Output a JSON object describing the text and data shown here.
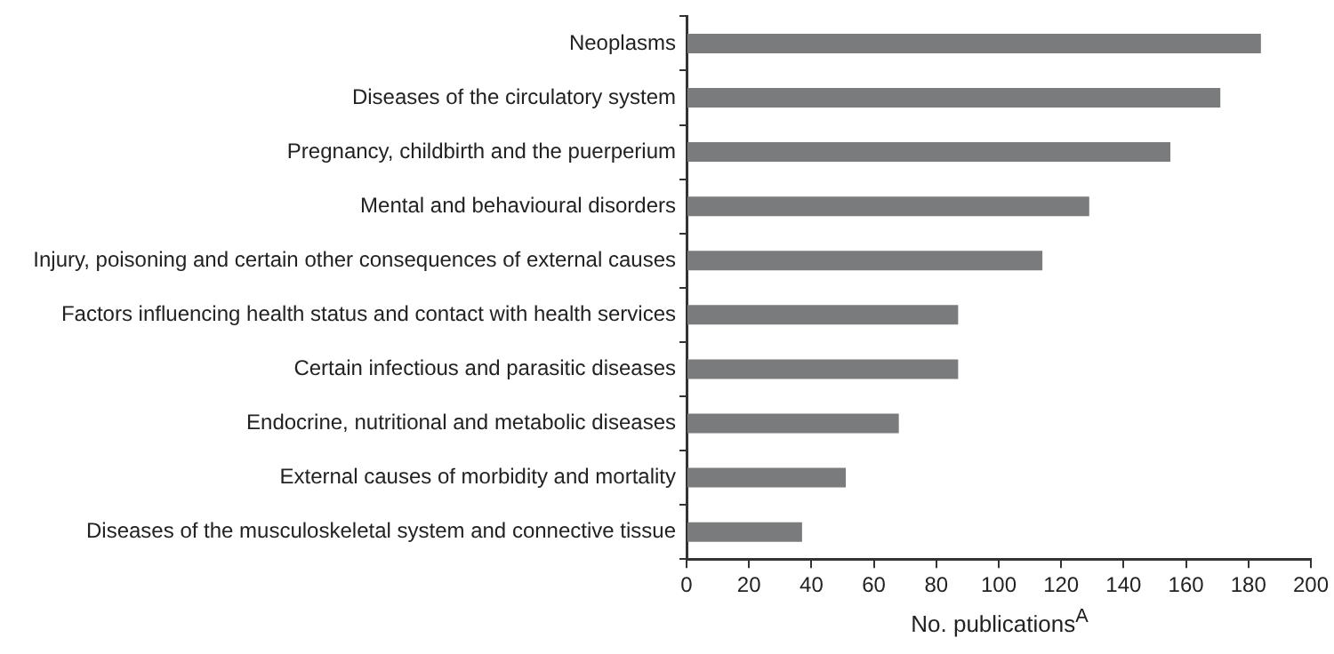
{
  "chart_data": {
    "type": "bar",
    "orientation": "horizontal",
    "categories": [
      "Neoplasms",
      "Diseases of the circulatory system",
      "Pregnancy, childbirth and the puerperium",
      "Mental and behavioural disorders",
      "Injury, poisoning and certain other consequences of external causes",
      "Factors influencing health status and contact with health services",
      "Certain infectious and parasitic diseases",
      "Endocrine, nutritional and metabolic diseases",
      "External causes of morbidity and mortality",
      "Diseases of the musculoskeletal system and connective tissue"
    ],
    "values": [
      184,
      171,
      155,
      129,
      114,
      87,
      87,
      68,
      51,
      37
    ],
    "color": "#7a7b7d",
    "xlabel": "No. publications$^{A}$",
    "xlim": [
      0,
      200
    ],
    "xticks": [
      0,
      20,
      40,
      60,
      80,
      100,
      120,
      140,
      160,
      180,
      200
    ],
    "grid": false,
    "legend": false
  }
}
